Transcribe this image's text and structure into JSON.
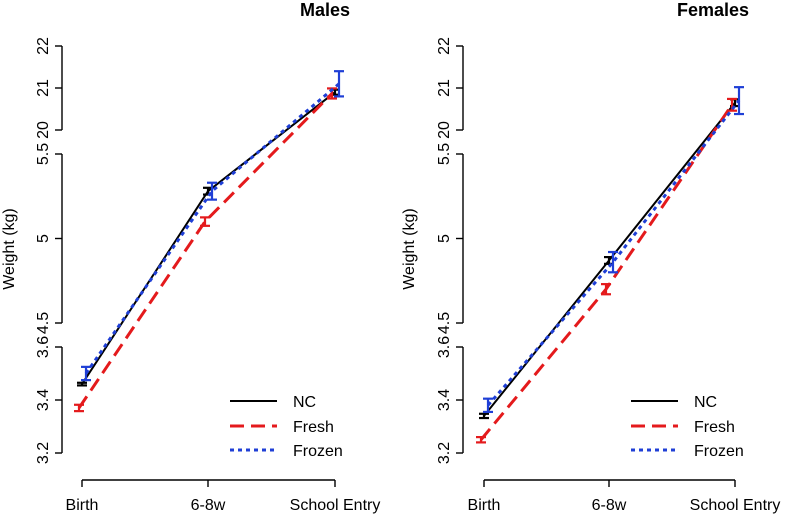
{
  "chart_data": [
    {
      "type": "line",
      "title": "Males",
      "ylabel": "Weight (kg)",
      "categories": [
        "Birth",
        "6-8w",
        "School Entry"
      ],
      "ylim_segments": [
        {
          "range": [
            3.2,
            3.6
          ],
          "ticks": [
            "3.2",
            "3.4",
            "3.6"
          ]
        },
        {
          "range": [
            4.5,
            5.5
          ],
          "ticks": [
            "4.5",
            "5",
            "5.5"
          ]
        },
        {
          "range": [
            20,
            22
          ],
          "ticks": [
            "20",
            "21",
            "22"
          ]
        }
      ],
      "series": [
        {
          "name": "NC",
          "color": "#000000",
          "dash": "solid",
          "values": [
            3.46,
            5.28,
            20.9
          ],
          "errors": [
            0.005,
            0.02,
            0.06
          ]
        },
        {
          "name": "Fresh",
          "color": "#e41a1c",
          "dash": "dashed",
          "values": [
            3.37,
            5.1,
            20.87
          ],
          "errors": [
            0.012,
            0.025,
            0.12
          ]
        },
        {
          "name": "Frozen",
          "color": "#1f3fd6",
          "dash": "dotted",
          "values": [
            3.5,
            5.28,
            21.1
          ],
          "errors": [
            0.025,
            0.05,
            0.3
          ]
        }
      ],
      "legend": [
        "NC",
        "Fresh",
        "Frozen"
      ],
      "legend_position": "bottom-right"
    },
    {
      "type": "line",
      "title": "Females",
      "ylabel": "Weight (kg)",
      "categories": [
        "Birth",
        "6-8w",
        "School Entry"
      ],
      "ylim_segments": [
        {
          "range": [
            3.2,
            3.6
          ],
          "ticks": [
            "3.2",
            "3.4",
            "3.6"
          ]
        },
        {
          "range": [
            4.5,
            5.5
          ],
          "ticks": [
            "4.5",
            "5",
            "5.5"
          ]
        },
        {
          "range": [
            20,
            22
          ],
          "ticks": [
            "20",
            "21",
            "22"
          ]
        }
      ],
      "series": [
        {
          "name": "NC",
          "color": "#000000",
          "dash": "solid",
          "values": [
            3.34,
            4.87,
            20.65
          ],
          "errors": [
            0.008,
            0.02,
            0.08
          ]
        },
        {
          "name": "Fresh",
          "color": "#e41a1c",
          "dash": "dashed",
          "values": [
            3.25,
            4.7,
            20.6
          ],
          "errors": [
            0.01,
            0.03,
            0.14
          ]
        },
        {
          "name": "Frozen",
          "color": "#1f3fd6",
          "dash": "dotted",
          "values": [
            3.38,
            4.86,
            20.7
          ],
          "errors": [
            0.025,
            0.06,
            0.32
          ]
        }
      ],
      "legend": [
        "NC",
        "Fresh",
        "Frozen"
      ],
      "legend_position": "bottom-right"
    }
  ]
}
